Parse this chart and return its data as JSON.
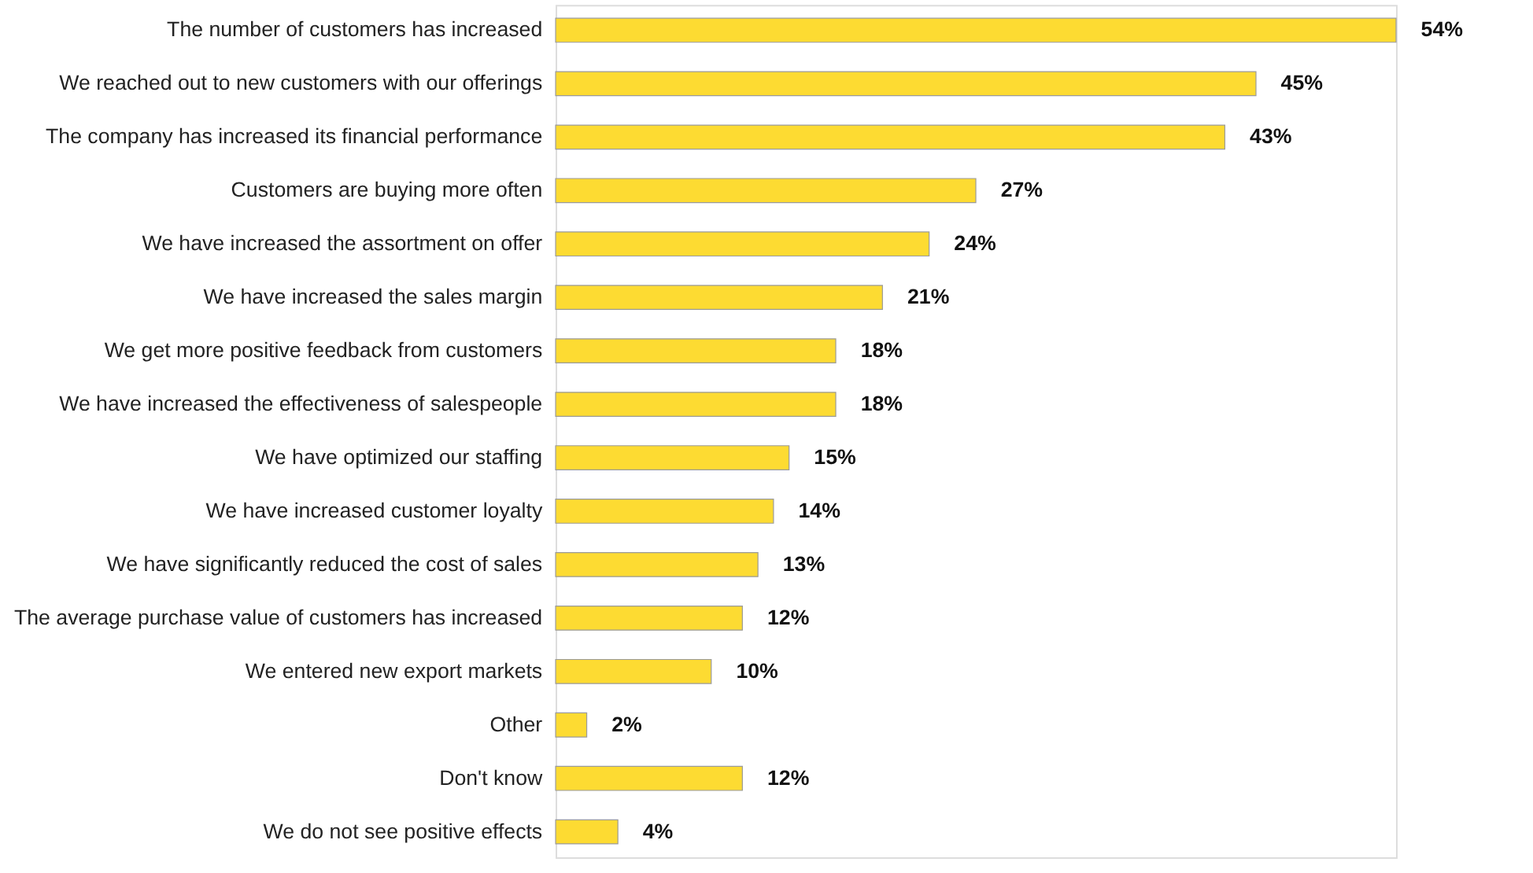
{
  "chart_data": {
    "type": "bar",
    "orientation": "horizontal",
    "tick_labels": "y",
    "color": "#fddb32",
    "categories": [
      "The number of customers has increased",
      "We reached out to new customers with our offerings",
      "The company has increased its financial performance",
      "Customers are buying more often",
      "We have increased the assortment on offer",
      "We have increased the sales margin",
      "We get more positive feedback from customers",
      "We have increased the effectiveness of salespeople",
      "We have optimized our staffing",
      "We have increased customer loyalty",
      "We have significantly reduced the cost of sales",
      "The average purchase value of customers has increased",
      "We entered new export markets",
      "Other",
      "Don't know",
      "We do not see positive effects"
    ],
    "values": [
      54,
      45,
      43,
      27,
      24,
      21,
      18,
      18,
      15,
      14,
      13,
      12,
      10,
      2,
      12,
      4
    ],
    "value_labels": [
      "54%",
      "45%",
      "43%",
      "27%",
      "24%",
      "21%",
      "18%",
      "18%",
      "15%",
      "14%",
      "13%",
      "12%",
      "10%",
      "2%",
      "12%",
      "4%"
    ]
  }
}
